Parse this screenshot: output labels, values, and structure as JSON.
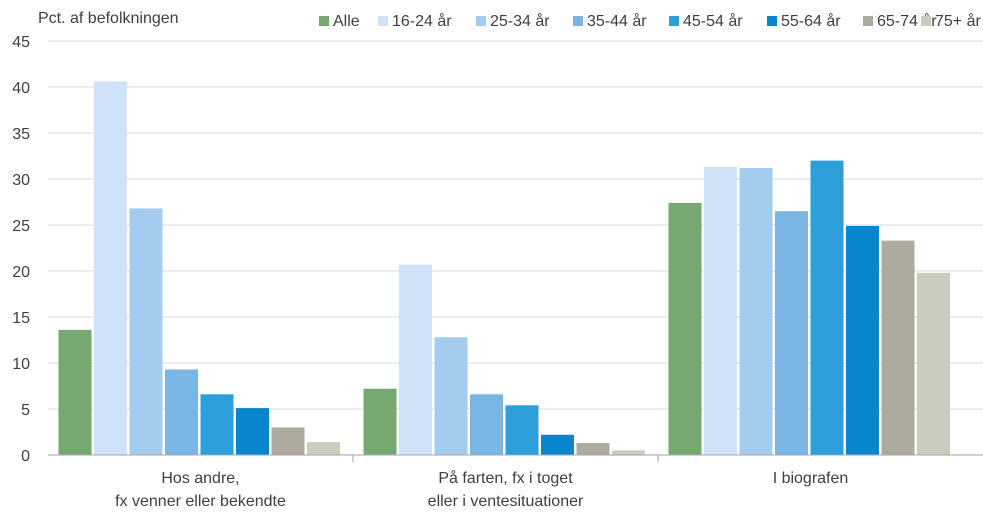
{
  "chart_data": {
    "type": "bar",
    "ylabel": "Pct. af befolkningen",
    "ylim": [
      0,
      45
    ],
    "yticks": [
      0,
      5,
      10,
      15,
      20,
      25,
      30,
      35,
      40,
      45
    ],
    "grid": true,
    "legend_position": "top",
    "categories": [
      [
        "Hos andre,",
        "fx venner eller bekendte"
      ],
      [
        "På farten, fx i toget",
        "eller i ventesituationer"
      ],
      [
        "I biografen"
      ]
    ],
    "series": [
      {
        "name": "Alle",
        "color": "#76A96F",
        "values": [
          13.6,
          7.2,
          27.4
        ]
      },
      {
        "name": "16-24 år",
        "color": "#CFE2F7",
        "values": [
          40.6,
          20.7,
          31.3
        ]
      },
      {
        "name": "25-34 år",
        "color": "#A3CCEE",
        "values": [
          26.8,
          12.8,
          31.2
        ]
      },
      {
        "name": "35-44 år",
        "color": "#7AB5E3",
        "values": [
          9.3,
          6.6,
          26.5
        ]
      },
      {
        "name": "45-54 år",
        "color": "#2C9FDB",
        "values": [
          6.6,
          5.4,
          32.0
        ]
      },
      {
        "name": "55-64 år",
        "color": "#0A86CF",
        "values": [
          5.1,
          2.2,
          24.9
        ]
      },
      {
        "name": "65-74 år",
        "color": "#ADAB9E",
        "values": [
          3.0,
          1.3,
          23.3
        ]
      },
      {
        "name": "75+ år",
        "color": "#CBCBBE",
        "values": [
          1.4,
          0.5,
          19.8
        ]
      }
    ]
  }
}
